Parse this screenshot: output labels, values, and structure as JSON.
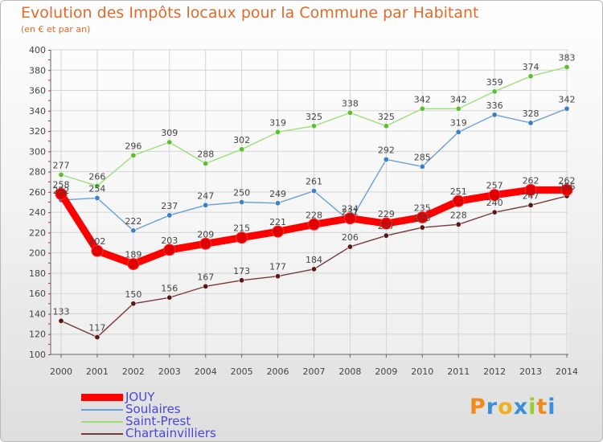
{
  "chart_data": {
    "type": "line",
    "title": "Evolution des Impôts locaux pour la Commune par Habitant",
    "subtitle": "(en € et par an)",
    "xlabel": "",
    "ylabel": "",
    "categories": [
      "2000",
      "2001",
      "2002",
      "2003",
      "2004",
      "2005",
      "2006",
      "2007",
      "2008",
      "2009",
      "2010",
      "2011",
      "2012",
      "2013",
      "2014"
    ],
    "ylim": [
      100,
      400
    ],
    "yticks": [
      100,
      120,
      140,
      160,
      180,
      200,
      220,
      240,
      260,
      280,
      300,
      320,
      340,
      360,
      380,
      400
    ],
    "grid": true,
    "legend_position": "bottom-left",
    "series": [
      {
        "name": "JOUY",
        "color": "#ff0000",
        "marker_color": "#e00000",
        "values": [
          258,
          202,
          189,
          203,
          209,
          215,
          221,
          228,
          234,
          229,
          235,
          251,
          257,
          262,
          262
        ],
        "labels": [
          "258",
          "202",
          "189",
          "203",
          "209",
          "215",
          "221",
          "228",
          "234",
          "229",
          "235",
          "251",
          "257",
          "262",
          "262"
        ]
      },
      {
        "name": "Soulaires",
        "color": "#6a9fd4",
        "marker_color": "#3b7fc4",
        "values": [
          252,
          254,
          222,
          237,
          247,
          250,
          249,
          261,
          231,
          292,
          285,
          319,
          336,
          328,
          342
        ],
        "labels": [
          "252",
          "254",
          "222",
          "237",
          "247",
          "250",
          "249",
          "261",
          "231",
          "292",
          "285",
          "319",
          "336",
          "328",
          "342"
        ]
      },
      {
        "name": "Saint-Prest",
        "color": "#9be07a",
        "marker_color": "#5cc02e",
        "values": [
          277,
          266,
          296,
          309,
          288,
          302,
          319,
          325,
          338,
          325,
          342,
          342,
          359,
          374,
          383
        ],
        "labels": [
          "277",
          "266",
          "296",
          "309",
          "288",
          "302",
          "319",
          "325",
          "338",
          "325",
          "342",
          "342",
          "359",
          "374",
          "383"
        ]
      },
      {
        "name": "Chartainvilliers",
        "color": "#7a3a3a",
        "marker_color": "#5a1818",
        "values": [
          133,
          117,
          150,
          156,
          167,
          173,
          177,
          184,
          206,
          217,
          225,
          228,
          240,
          247,
          256
        ],
        "labels": [
          "133",
          "117",
          "150",
          "156",
          "167",
          "173",
          "177",
          "184",
          "206",
          "217",
          "225",
          "228",
          "240",
          "247",
          "256"
        ]
      }
    ]
  },
  "branding": {
    "logo_letters": [
      "P",
      "r",
      "o",
      "x",
      "i",
      "t",
      "i"
    ],
    "logo_colors": [
      "#f08a1c",
      "#3a8fd8",
      "#f0b21c",
      "#3a8fd8",
      "#9acd32",
      "#f08a1c",
      "#3a8fd8"
    ]
  }
}
